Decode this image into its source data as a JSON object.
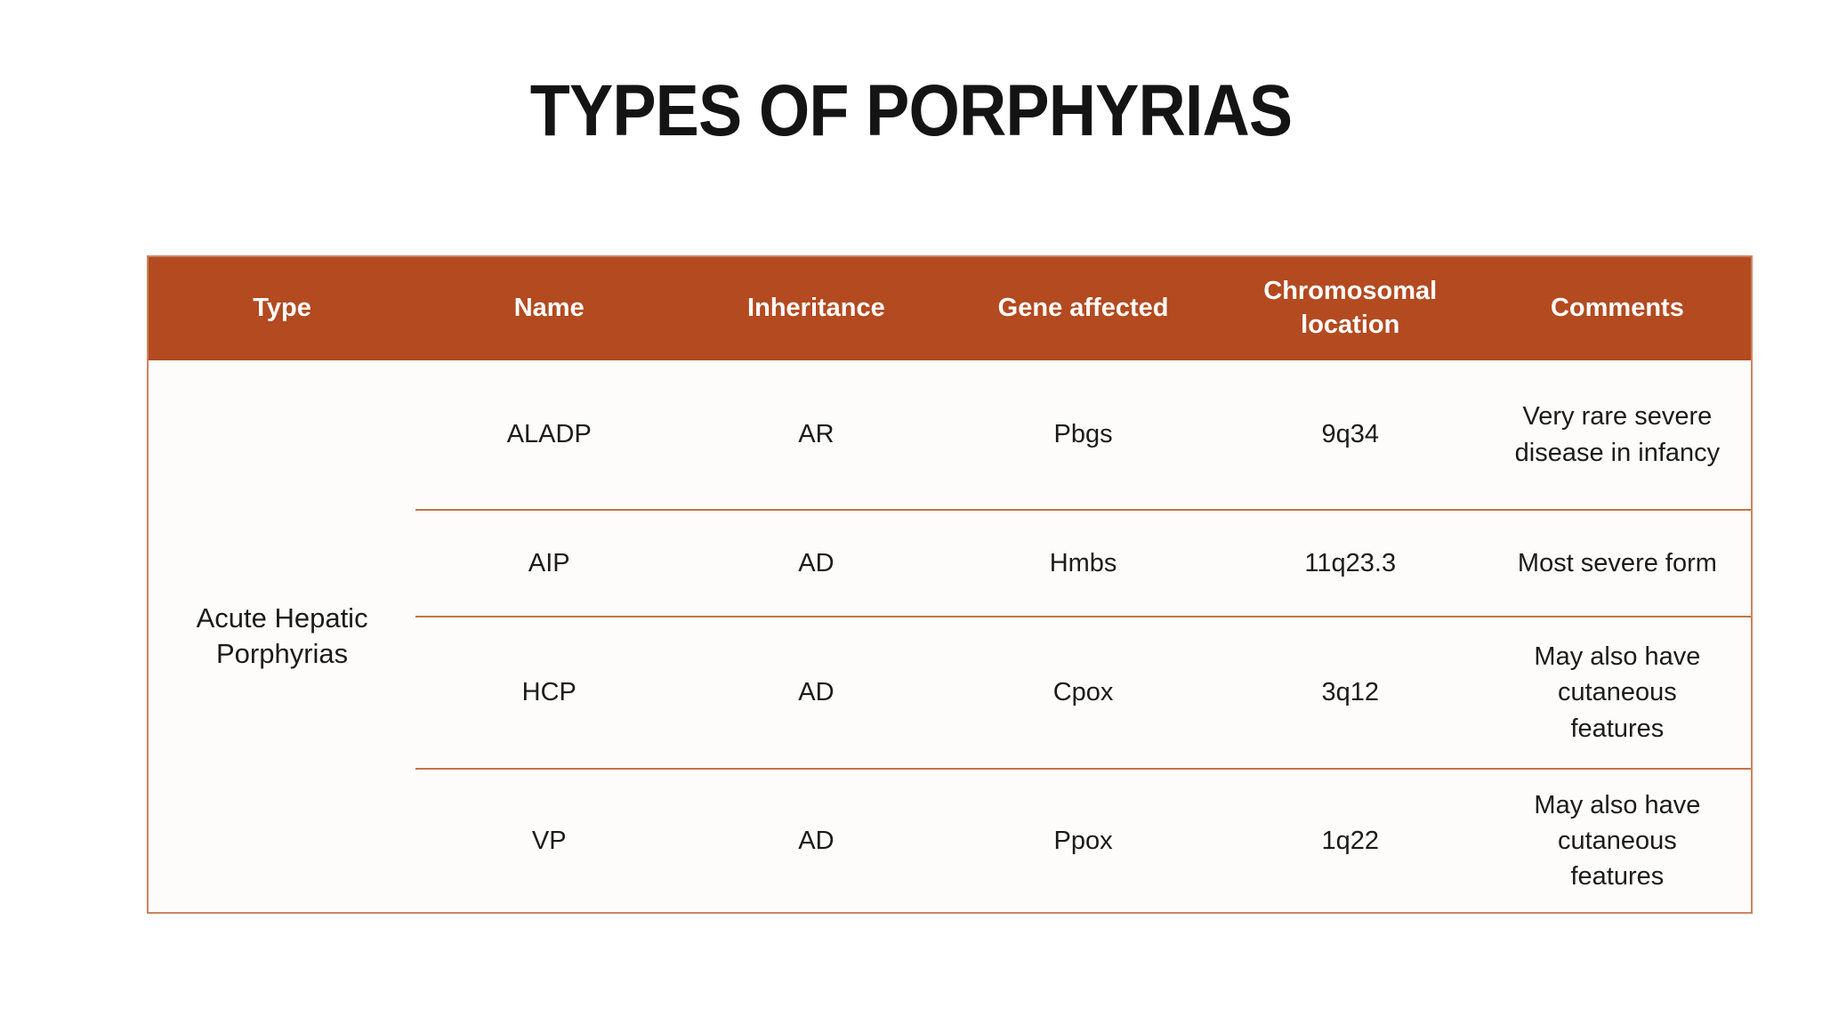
{
  "slide": {
    "title": "TYPES OF PORPHYRIAS"
  },
  "table": {
    "columns": [
      "Type",
      "Name",
      "Inheritance",
      "Gene affected",
      "Chromosomal location",
      "Comments"
    ],
    "group_label": "Acute Hepatic Porphyrias",
    "rows": [
      {
        "name": "ALADP",
        "inheritance": "AR",
        "gene": "Pbgs",
        "location": "9q34",
        "comments": "Very rare severe disease in infancy"
      },
      {
        "name": "AIP",
        "inheritance": "AD",
        "gene": "Hmbs",
        "location": "11q23.3",
        "comments": "Most severe form"
      },
      {
        "name": "HCP",
        "inheritance": "AD",
        "gene": "Cpox",
        "location": "3q12",
        "comments": "May also have cutaneous features"
      },
      {
        "name": "VP",
        "inheritance": "AD",
        "gene": "Ppox",
        "location": "1q22",
        "comments": "May also have cutaneous features"
      }
    ],
    "colors": {
      "header_bg": "#b34a20",
      "header_text": "#ffffff",
      "row_divider": "#c57349",
      "outer_border": "#c9855f",
      "cell_text": "#1b1b1b"
    }
  }
}
